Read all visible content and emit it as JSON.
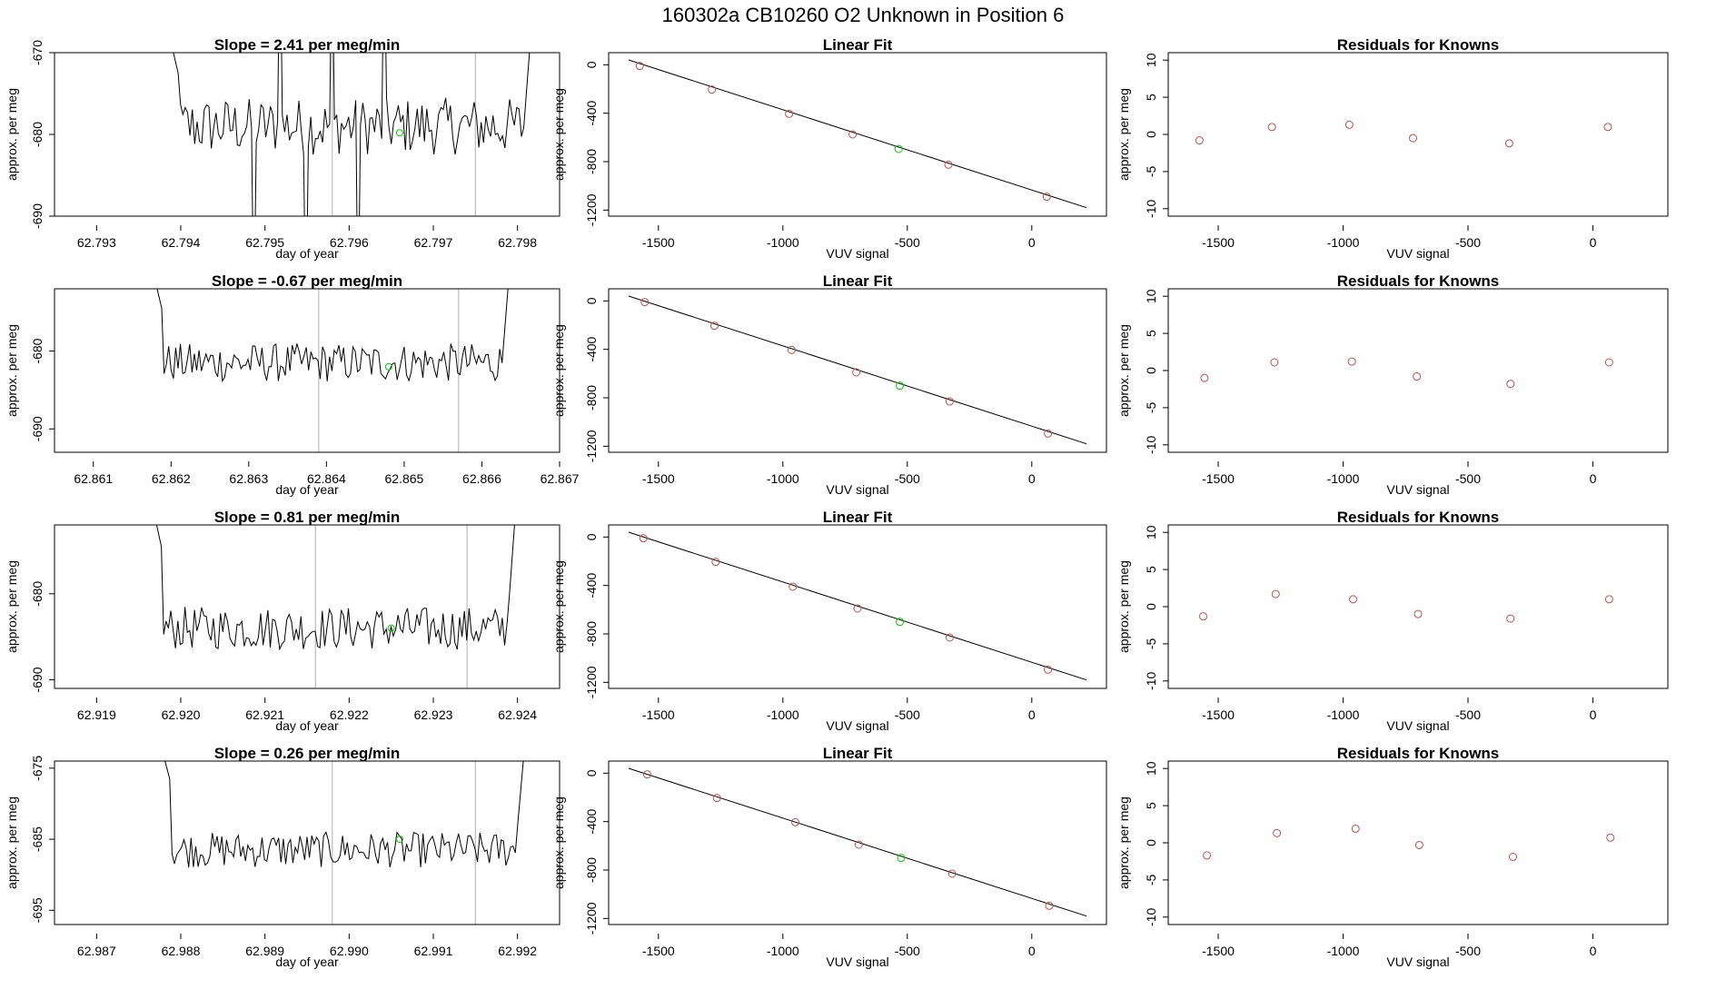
{
  "page_title": "160302a      CB10260    O2 Unknown in Position  6",
  "colors": {
    "trace": "#000000",
    "known_point": "#c0504d",
    "unknown_point": "#00cc00",
    "marker_line": "#bbbbbb",
    "fit_line": "#000000"
  },
  "rows": [
    {
      "time_plot": {
        "title": "Slope =  2.41  per meg/min",
        "xlabel": "day of year",
        "ylabel": "approx. per meg",
        "xlim": [
          62.7925,
          62.7985
        ],
        "ylim": [
          -690,
          -670
        ],
        "xticks": [
          "62.793",
          "62.794",
          "62.795",
          "62.796",
          "62.797",
          "62.798"
        ],
        "yticks": [
          "-690",
          "-680",
          "-670"
        ],
        "trace_x_range": [
          62.7938,
          62.7983
        ],
        "trace_center": -679,
        "trace_amplitude": 3.5,
        "trace_spikes": true,
        "markers": [
          62.7958,
          62.7975
        ],
        "unknown_point": {
          "x": 62.7966,
          "y": -679.8
        }
      },
      "fit_plot": {
        "title": "Linear Fit",
        "xlabel": "VUV signal",
        "ylabel": "approx. per meg",
        "xlim": [
          -1700,
          300
        ],
        "ylim": [
          -1250,
          100
        ],
        "xticks": [
          "-1500",
          "-1000",
          "-500",
          "0"
        ],
        "yticks": [
          "0",
          "-400",
          "-800",
          "-1200"
        ],
        "line": [
          [
            -1620,
            40
          ],
          [
            220,
            -1180
          ]
        ],
        "knowns": [
          {
            "x": -1575,
            "y": -10
          },
          {
            "x": -1285,
            "y": -205
          },
          {
            "x": -975,
            "y": -405
          },
          {
            "x": -720,
            "y": -575
          },
          {
            "x": -335,
            "y": -825
          },
          {
            "x": 60,
            "y": -1090
          }
        ],
        "unknown": {
          "x": -535,
          "y": -695
        }
      },
      "resid_plot": {
        "title": "Residuals for Knowns",
        "ylabel": "approx. per meg",
        "xlim": [
          -1700,
          300
        ],
        "ylim": [
          -11,
          11
        ],
        "xticks": [
          "-1500",
          "-1000",
          "-500",
          "0"
        ],
        "yticks": [
          "10",
          "5",
          "0",
          "-5",
          "-10"
        ],
        "xlabel": "VUV signal",
        "points": [
          {
            "x": -1575,
            "y": -0.8
          },
          {
            "x": -1285,
            "y": 1.0
          },
          {
            "x": -975,
            "y": 1.3
          },
          {
            "x": -720,
            "y": -0.5
          },
          {
            "x": -335,
            "y": -1.2
          },
          {
            "x": 60,
            "y": 1.0
          }
        ]
      }
    },
    {
      "time_plot": {
        "title": "Slope =  -0.67  per meg/min",
        "xlabel": "day of year",
        "ylabel": "approx. per meg",
        "xlim": [
          62.8605,
          62.867
        ],
        "ylim": [
          -693,
          -672
        ],
        "xticks": [
          "62.861",
          "62.862",
          "62.863",
          "62.864",
          "62.865",
          "62.866",
          "62.867"
        ],
        "yticks": [
          "-690",
          "-680"
        ],
        "trace_x_range": [
          62.8617,
          62.8665
        ],
        "trace_center": -681.5,
        "trace_amplitude": 2.5,
        "trace_spikes": false,
        "markers": [
          62.8639,
          62.8657
        ],
        "unknown_point": {
          "x": 62.8648,
          "y": -682
        }
      },
      "fit_plot": {
        "title": "Linear Fit",
        "xlabel": "VUV signal",
        "ylabel": "approx. per meg",
        "xlim": [
          -1700,
          300
        ],
        "ylim": [
          -1250,
          100
        ],
        "xticks": [
          "-1500",
          "-1000",
          "-500",
          "0"
        ],
        "yticks": [
          "0",
          "-400",
          "-800",
          "-1200"
        ],
        "line": [
          [
            -1620,
            40
          ],
          [
            220,
            -1180
          ]
        ],
        "knowns": [
          {
            "x": -1555,
            "y": -10
          },
          {
            "x": -1275,
            "y": -205
          },
          {
            "x": -965,
            "y": -405
          },
          {
            "x": -705,
            "y": -590
          },
          {
            "x": -330,
            "y": -830
          },
          {
            "x": 65,
            "y": -1095
          }
        ],
        "unknown": {
          "x": -530,
          "y": -700
        }
      },
      "resid_plot": {
        "title": "Residuals for Knowns",
        "ylabel": "approx. per meg",
        "xlim": [
          -1700,
          300
        ],
        "ylim": [
          -11,
          11
        ],
        "xticks": [
          "-1500",
          "-1000",
          "-500",
          "0"
        ],
        "yticks": [
          "10",
          "5",
          "0",
          "-5",
          "-10"
        ],
        "xlabel": "VUV signal",
        "points": [
          {
            "x": -1555,
            "y": -1.0
          },
          {
            "x": -1275,
            "y": 1.1
          },
          {
            "x": -965,
            "y": 1.2
          },
          {
            "x": -705,
            "y": -0.8
          },
          {
            "x": -330,
            "y": -1.8
          },
          {
            "x": 65,
            "y": 1.1
          }
        ]
      }
    },
    {
      "time_plot": {
        "title": "Slope =  0.81  per meg/min",
        "xlabel": "day of year",
        "ylabel": "approx. per meg",
        "xlim": [
          62.9185,
          62.9245
        ],
        "ylim": [
          -691,
          -672
        ],
        "xticks": [
          "62.919",
          "62.920",
          "62.921",
          "62.922",
          "62.923",
          "62.924"
        ],
        "yticks": [
          "-690",
          "-680"
        ],
        "trace_x_range": [
          62.9196,
          62.9241
        ],
        "trace_center": -684,
        "trace_amplitude": 2.5,
        "trace_spikes": false,
        "markers": [
          62.9216,
          62.9234
        ],
        "unknown_point": {
          "x": 62.9225,
          "y": -684
        }
      },
      "fit_plot": {
        "title": "Linear Fit",
        "xlabel": "VUV signal",
        "ylabel": "approx. per meg",
        "xlim": [
          -1700,
          300
        ],
        "ylim": [
          -1250,
          100
        ],
        "xticks": [
          "-1500",
          "-1000",
          "-500",
          "0"
        ],
        "yticks": [
          "0",
          "-400",
          "-800",
          "-1200"
        ],
        "line": [
          [
            -1620,
            40
          ],
          [
            220,
            -1180
          ]
        ],
        "knowns": [
          {
            "x": -1560,
            "y": -10
          },
          {
            "x": -1270,
            "y": -205
          },
          {
            "x": -960,
            "y": -410
          },
          {
            "x": -700,
            "y": -590
          },
          {
            "x": -330,
            "y": -830
          },
          {
            "x": 65,
            "y": -1095
          }
        ],
        "unknown": {
          "x": -530,
          "y": -700
        }
      },
      "resid_plot": {
        "title": "Residuals for Knowns",
        "ylabel": "approx. per meg",
        "xlim": [
          -1700,
          300
        ],
        "ylim": [
          -11,
          11
        ],
        "xticks": [
          "-1500",
          "-1000",
          "-500",
          "0"
        ],
        "yticks": [
          "10",
          "5",
          "0",
          "-5",
          "-10"
        ],
        "xlabel": "VUV signal",
        "points": [
          {
            "x": -1560,
            "y": -1.3
          },
          {
            "x": -1270,
            "y": 1.7
          },
          {
            "x": -960,
            "y": 1.0
          },
          {
            "x": -700,
            "y": -1.0
          },
          {
            "x": -330,
            "y": -1.6
          },
          {
            "x": 65,
            "y": 1.0
          }
        ]
      }
    },
    {
      "time_plot": {
        "title": "Slope =  0.26  per meg/min",
        "xlabel": "day of year",
        "ylabel": "approx. per meg",
        "xlim": [
          62.9865,
          62.9925
        ],
        "ylim": [
          -697,
          -674
        ],
        "xticks": [
          "62.987",
          "62.988",
          "62.989",
          "62.990",
          "62.991",
          "62.992"
        ],
        "yticks": [
          "-695",
          "-685",
          "-675"
        ],
        "trace_x_range": [
          62.9877,
          62.9922
        ],
        "trace_center": -686.5,
        "trace_amplitude": 2.5,
        "trace_spikes": false,
        "markers": [
          62.9898,
          62.9915
        ],
        "unknown_point": {
          "x": 62.9906,
          "y": -685
        }
      },
      "fit_plot": {
        "title": "Linear Fit",
        "xlabel": "VUV signal",
        "ylabel": "approx. per meg",
        "xlim": [
          -1700,
          300
        ],
        "ylim": [
          -1250,
          100
        ],
        "xticks": [
          "-1500",
          "-1000",
          "-500",
          "0"
        ],
        "yticks": [
          "0",
          "-400",
          "-800",
          "-1200"
        ],
        "line": [
          [
            -1620,
            40
          ],
          [
            220,
            -1180
          ]
        ],
        "knowns": [
          {
            "x": -1545,
            "y": -10
          },
          {
            "x": -1265,
            "y": -205
          },
          {
            "x": -950,
            "y": -405
          },
          {
            "x": -695,
            "y": -590
          },
          {
            "x": -320,
            "y": -830
          },
          {
            "x": 70,
            "y": -1095
          }
        ],
        "unknown": {
          "x": -525,
          "y": -700
        }
      },
      "resid_plot": {
        "title": "Residuals for Knowns",
        "ylabel": "approx. per meg",
        "xlim": [
          -1700,
          300
        ],
        "ylim": [
          -11,
          11
        ],
        "xticks": [
          "-1500",
          "-1000",
          "-500",
          "0"
        ],
        "yticks": [
          "10",
          "5",
          "0",
          "-5",
          "-10"
        ],
        "xlabel": "VUV signal",
        "points": [
          {
            "x": -1545,
            "y": -1.7
          },
          {
            "x": -1265,
            "y": 1.3
          },
          {
            "x": -950,
            "y": 1.9
          },
          {
            "x": -695,
            "y": -0.3
          },
          {
            "x": -320,
            "y": -1.9
          },
          {
            "x": 70,
            "y": 0.7
          }
        ]
      }
    }
  ]
}
